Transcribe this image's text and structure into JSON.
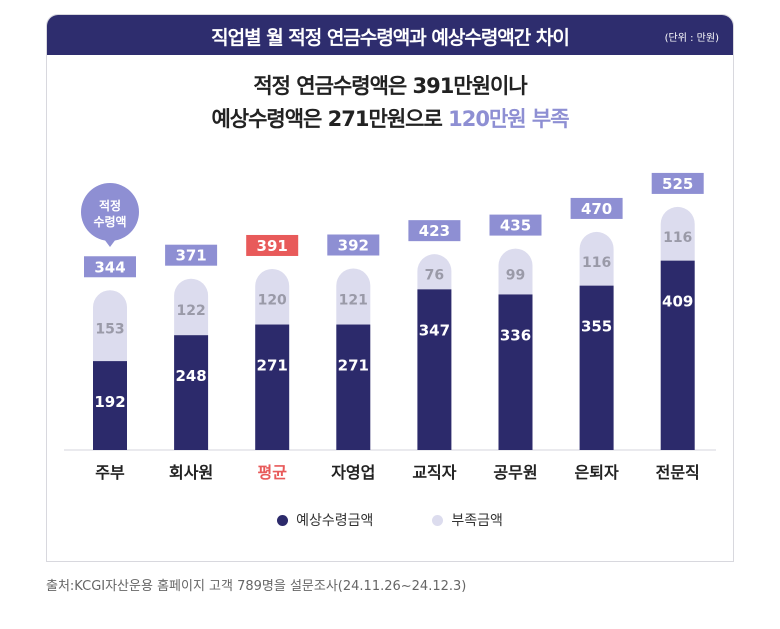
{
  "header": {
    "title": "직업별 월 적정 연금수령액과 예상수령액간 차이",
    "unit": "(단위 : 만원)"
  },
  "headline": {
    "line1": "적정 연금수령액은 391만원이나",
    "line2_a": "예상수령액은 271만원으로 ",
    "line2_b": "120만원 부족"
  },
  "bubble": {
    "line1": "적정",
    "line2": "수령액"
  },
  "chart_data": {
    "type": "bar",
    "stacked": true,
    "categories": [
      "주부",
      "회사원",
      "평균",
      "자영업",
      "교직자",
      "공무원",
      "은퇴자",
      "전문직"
    ],
    "series": [
      {
        "name": "예상수령금액",
        "values": [
          192,
          248,
          271,
          271,
          347,
          336,
          355,
          409
        ],
        "color": "#2c2a6b"
      },
      {
        "name": "부족금액",
        "values": [
          153,
          122,
          120,
          121,
          76,
          99,
          116,
          116
        ],
        "color": "#dcdcee"
      }
    ],
    "totals": [
      344,
      371,
      391,
      392,
      423,
      435,
      470,
      525
    ],
    "highlight_category": "평균",
    "highlight_color": "#e85a5a",
    "total_label_color": "#8e8fd3",
    "legend_position": "bottom"
  },
  "source": "출처:KCGI자산운용 홈페이지 고객 789명을 설문조사(24.11.26~24.12.3)"
}
